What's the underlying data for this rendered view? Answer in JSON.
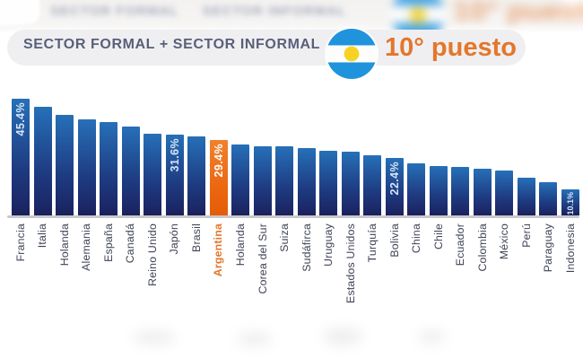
{
  "header": {
    "title": "SECTOR FORMAL + SECTOR INFORMAL",
    "rank_badge": {
      "flag": "argentina-flag",
      "label": "10° puesto"
    }
  },
  "ghost": {
    "title_part1": "SECTOR FORMAL",
    "title_part2": "SECTOR INFORMAL",
    "rank_label": "10° puesto"
  },
  "chart_data": {
    "type": "bar",
    "title": "SECTOR FORMAL + SECTOR INFORMAL",
    "badge": "10° puesto",
    "unit": "%",
    "ylim": [
      0,
      50
    ],
    "grid": false,
    "legend": false,
    "highlight_category": "Argentina",
    "highlight_index": 9,
    "categories": [
      "Francia",
      "Italia",
      "Holanda",
      "Alemania",
      "España",
      "Canadá",
      "Reino Unido",
      "Japón",
      "Brasil",
      "Argentina",
      "Holanda",
      "Corea del Sur",
      "Suiza",
      "Sudáfirca",
      "Uruguay",
      "Estados Unidos",
      "Turquía",
      "Bolivia",
      "China",
      "Chile",
      "Ecuador",
      "Colombia",
      "México",
      "Perú",
      "Paraguay",
      "Indonesia"
    ],
    "values": [
      45.4,
      42.3,
      39.1,
      37.4,
      36.3,
      34.6,
      31.8,
      31.6,
      30.7,
      29.4,
      27.6,
      26.9,
      26.9,
      26.2,
      25.1,
      24.8,
      23.4,
      22.4,
      20.3,
      19.2,
      18.9,
      18.2,
      17.5,
      14.7,
      12.9,
      10.1
    ],
    "bar_labels": [
      {
        "index": 0,
        "text": "45.4%"
      },
      {
        "index": 7,
        "text": "31.6%"
      },
      {
        "index": 9,
        "text": "29.4%"
      },
      {
        "index": 17,
        "text": "22.4%"
      },
      {
        "index": 25,
        "text": "10.1%"
      }
    ],
    "colors": {
      "bar_top": "#2670b8",
      "bar_bottom": "#1b2766",
      "highlight_top": "#f0812e",
      "highlight_bottom": "#e45c09",
      "axis_line": "#c8c9cb",
      "category_label": "#3e4254",
      "value_label": "#d7e4f6",
      "accent": "#e4762b",
      "flag_blue": "#2093dd",
      "flag_sun": "#f7d224",
      "pill_bg": "#efeff1",
      "title_color": "#5a5f7a"
    }
  }
}
